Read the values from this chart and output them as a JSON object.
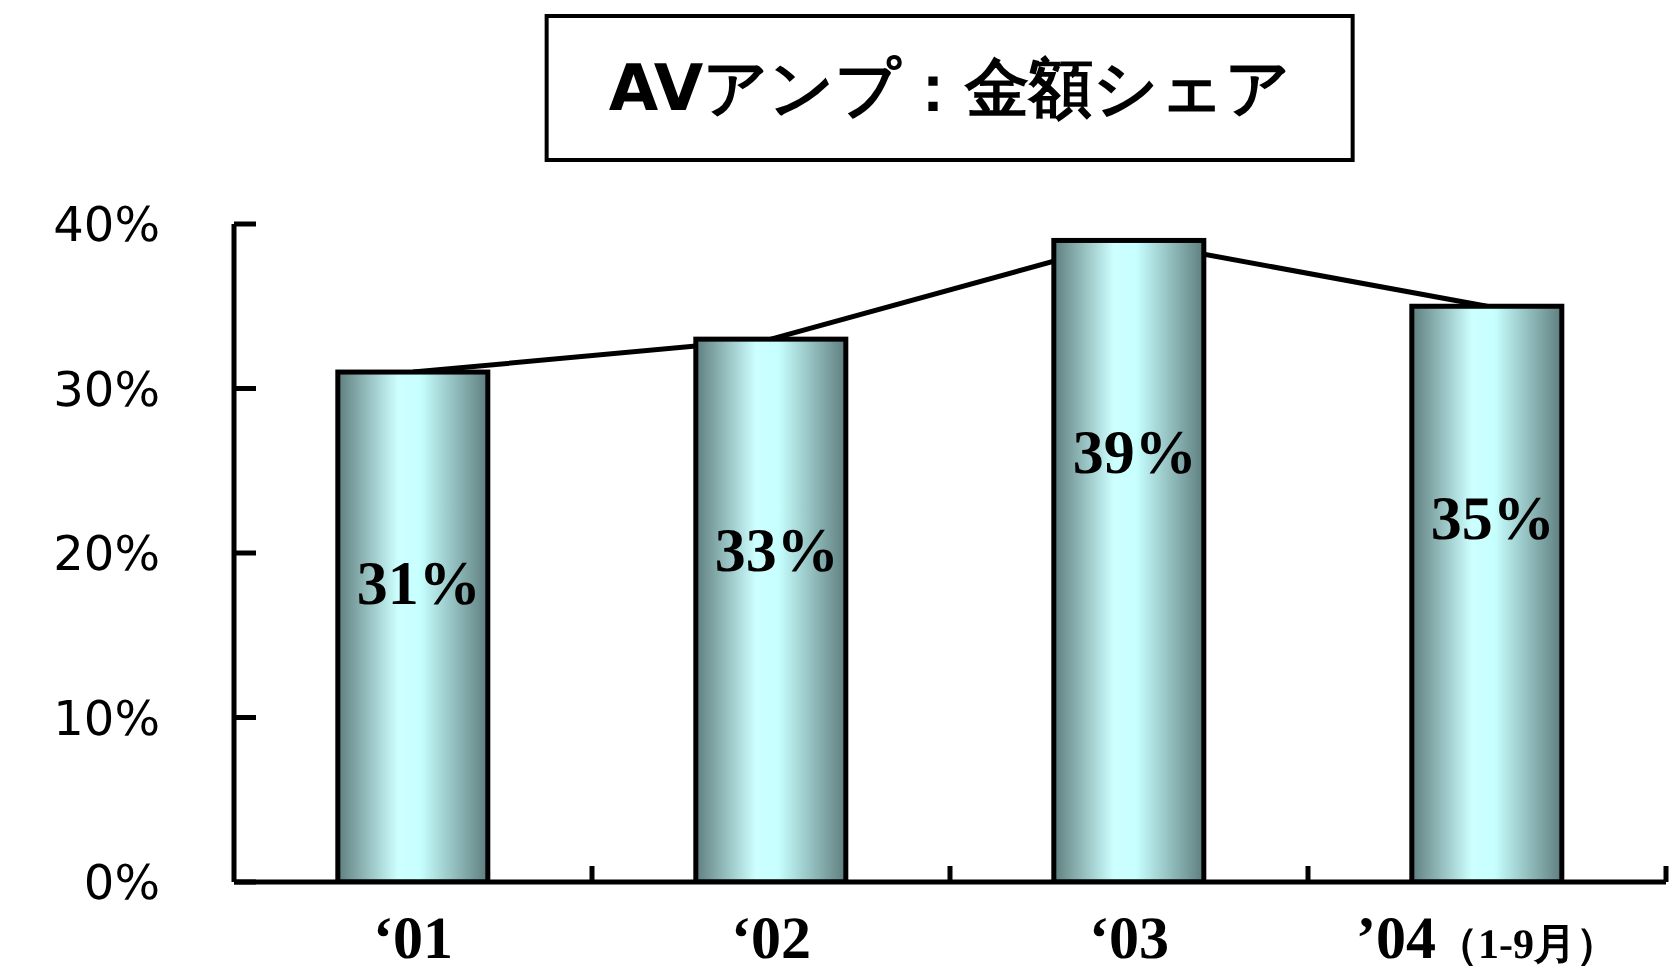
{
  "chart_data": {
    "type": "bar",
    "title": "AVアンプ：金額シェア",
    "categories": [
      "‘01",
      "‘02",
      "‘03",
      "’04（1-9月）"
    ],
    "series": [
      {
        "type": "line",
        "color": "#000000",
        "values": [
          31,
          33,
          39,
          35
        ]
      },
      {
        "color": "#99cccc",
        "values": [
          31,
          33,
          39,
          35
        ],
        "value_labels": [
          "31%",
          "33%",
          "39%",
          "35%"
        ]
      }
    ],
    "ylim": [
      0,
      40
    ],
    "yticks": [
      {
        "value": 0,
        "label": "0%"
      },
      {
        "value": 10,
        "label": "10%"
      },
      {
        "value": 20,
        "label": "20%"
      },
      {
        "value": 30,
        "label": "30%"
      },
      {
        "value": 40,
        "label": "40%"
      }
    ]
  }
}
